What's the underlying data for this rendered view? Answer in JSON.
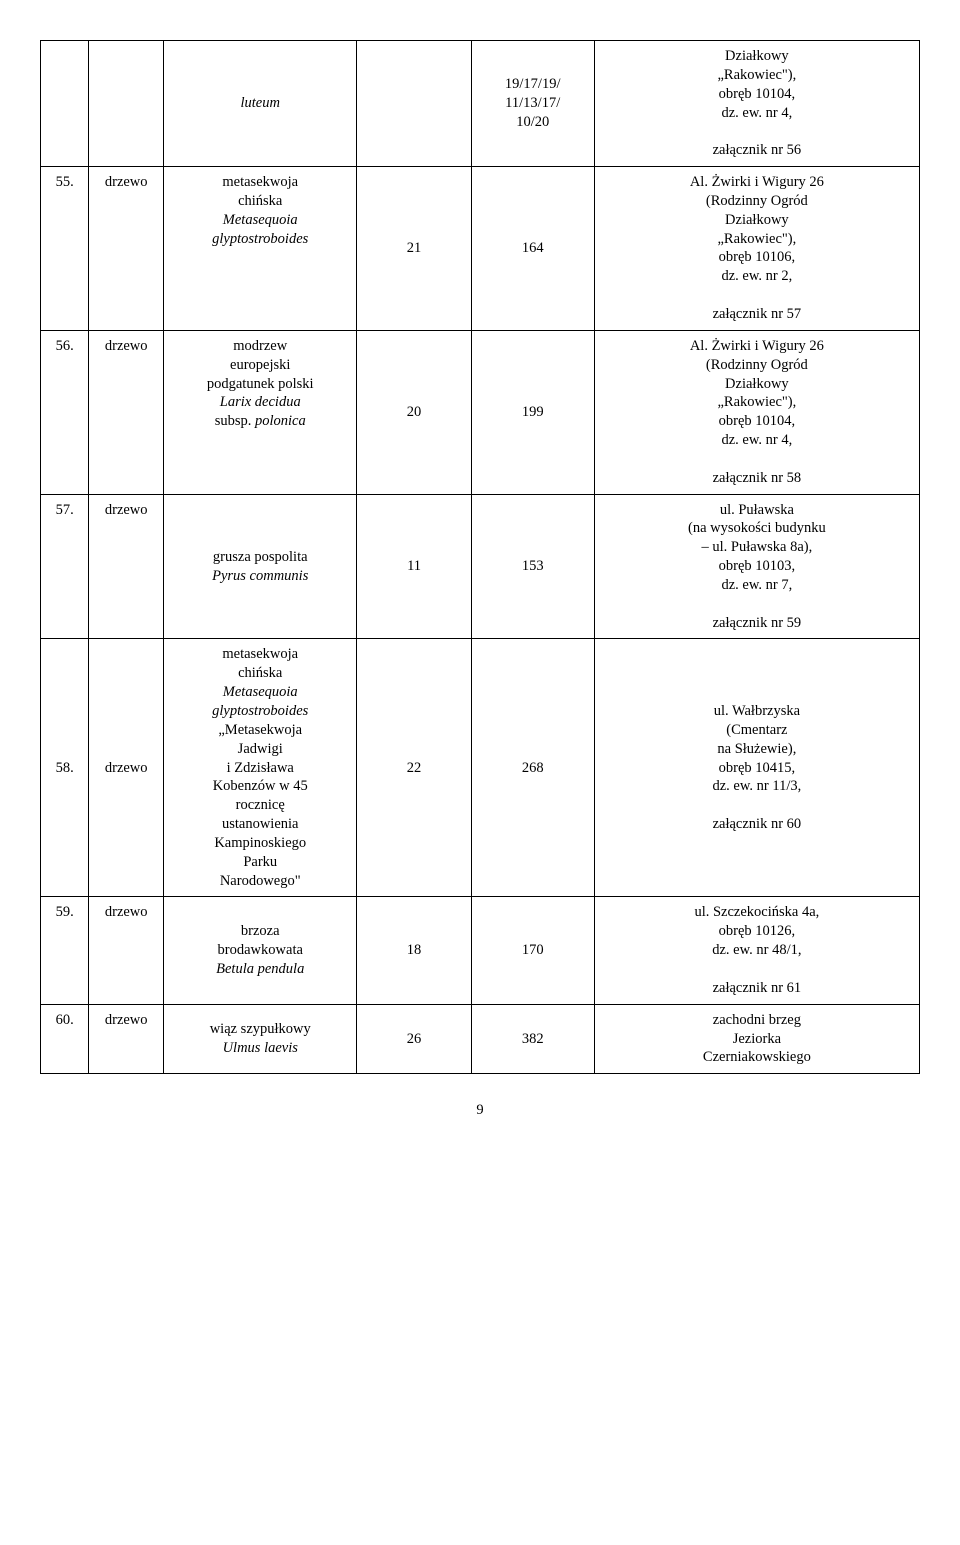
{
  "rows": [
    {
      "num": "",
      "kind": "",
      "species_html": "<span class=\"italic\">luteum</span>",
      "col4": "",
      "col5": "19/17/19/<br>11/13/17/<br>10/20",
      "desc_html": "Działkowy<br>„Rakowiec\"),<br>obręb 10104,<br>dz. ew. nr 4,<br><br>załącznik nr 56"
    },
    {
      "num": "55.",
      "kind": "drzewo",
      "species_html": "metasekwoja<br>chińska<br><span class=\"italic\">Metasequoia<br>glyptostroboides</span>",
      "col4": "21",
      "col5": "164",
      "desc_html": "Al. Żwirki i Wigury 26<br>(Rodzinny Ogród<br>Działkowy<br>„Rakowiec\"),<br>obręb 10106,<br>dz. ew. nr 2,<br><br>załącznik nr 57"
    },
    {
      "num": "56.",
      "kind": "drzewo",
      "species_html": "modrzew<br>europejski<br>podgatunek polski<br><span class=\"italic\">Larix decidua</span><br>subsp. <span class=\"italic\">polonica</span>",
      "col4": "20",
      "col5": "199",
      "desc_html": "Al. Żwirki i Wigury 26<br>(Rodzinny Ogród<br>Działkowy<br>„Rakowiec\"),<br>obręb 10104,<br>dz. ew. nr 4,<br><br>załącznik nr 58"
    },
    {
      "num": "57.",
      "kind": "drzewo",
      "species_html": "grusza pospolita<br><span class=\"italic\">Pyrus communis</span>",
      "col4": "11",
      "col5": "153",
      "desc_html": "ul. Puławska<br>(na wysokości budynku<br>– ul. Puławska 8a),<br>obręb 10103,<br>dz. ew. nr 7,<br><br>załącznik nr 59"
    },
    {
      "num": "58.",
      "kind": "drzewo",
      "species_html": "metasekwoja<br>chińska<br><span class=\"italic\">Metasequoia<br>glyptostroboides</span><br>„Metasekwoja<br>Jadwigi<br>i Zdzisława<br>Kobenzów w 45<br>rocznicę<br>ustanowienia<br>Kampinoskiego<br>Parku<br>Narodowego\"",
      "col4": "22",
      "col5": "268",
      "desc_html": "ul. Wałbrzyska<br>(Cmentarz<br>na Służewie),<br>obręb 10415,<br>dz. ew. nr 11/3,<br><br>załącznik nr 60"
    },
    {
      "num": "59.",
      "kind": "drzewo",
      "species_html": "brzoza<br>brodawkowata<br><span class=\"italic\">Betula pendula</span>",
      "col4": "18",
      "col5": "170",
      "desc_html": "ul. Szczekocińska 4a,<br>obręb 10126,<br>dz. ew. nr 48/1,<br><br>załącznik nr 61"
    },
    {
      "num": "60.",
      "kind": "drzewo",
      "species_html": "wiąz szypułkowy<br><span class=\"italic\">Ulmus laevis</span>",
      "col4": "26",
      "col5": "382",
      "desc_html": "zachodni brzeg<br>Jeziorka<br>Czerniakowskiego"
    }
  ],
  "page_number": "9",
  "vcenter": {
    "0": [
      2,
      3,
      4
    ],
    "1": [
      3,
      4
    ],
    "2": [
      3,
      4
    ],
    "3": [
      2,
      3,
      4
    ],
    "4": [
      0,
      1,
      2,
      3,
      4,
      5
    ],
    "5": [
      2,
      3,
      4
    ],
    "6": [
      2,
      3,
      4
    ]
  }
}
